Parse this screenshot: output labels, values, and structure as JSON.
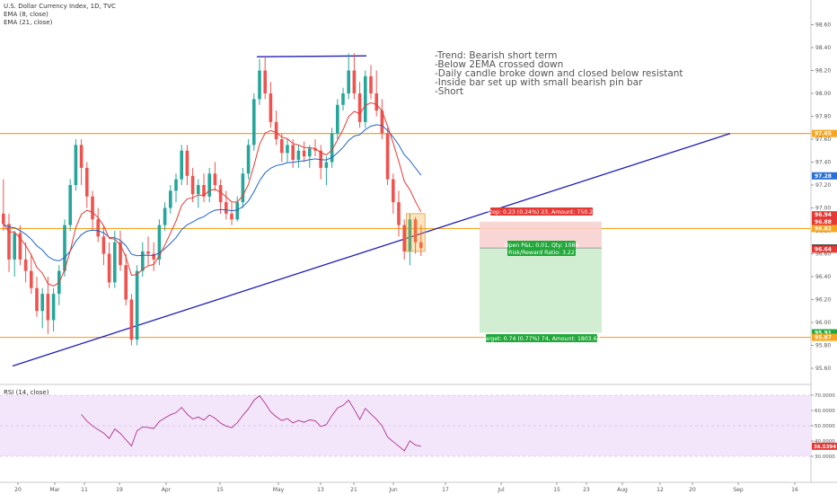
{
  "header": {
    "symbol_line": "U.S. Dollar Currency Index, 1D, TVC",
    "ema8": "EMA (8, close)",
    "ema21": "EMA (21, close)",
    "rsi_label": "RSI (14, close)"
  },
  "notes": [
    "-Trend: Bearish short term",
    "-Below 2EMA crossed down",
    "-Daily candle broke down and closed below resistant",
    "-Inside bar set up with small bearish pin bar",
    "-Short"
  ],
  "position": {
    "stop_text": "Stop: 0.23 (0.24%) 23, Amount: 750.22",
    "open_text": "Open P&L: 0.01, Qty: 1086",
    "rr_text": "Risk/Reward Ratio: 3.22",
    "target_text": "Target: 0.74 (0.77%) 74, Amount: 1803.64"
  },
  "price_axis": {
    "ticks": [
      "98.60",
      "98.40",
      "98.20",
      "98.00",
      "97.80",
      "97.60",
      "97.40",
      "97.20",
      "97.00",
      "96.80",
      "96.60",
      "96.40",
      "96.20",
      "96.00",
      "95.80",
      "95.60"
    ],
    "badges": [
      {
        "text": "97.65",
        "color": "#f5a623"
      },
      {
        "text": "97.28",
        "color": "#2a6fd6"
      },
      {
        "text": "96.94",
        "color": "#e53935"
      },
      {
        "text": "96.88",
        "color": "#e53935"
      },
      {
        "text": "96.82",
        "color": "#f5a623"
      },
      {
        "text": "96.65",
        "color": "#3a3a3a"
      },
      {
        "text": "96.64",
        "color": "#e53935"
      },
      {
        "text": "95.91",
        "color": "#22a83a"
      },
      {
        "text": "95.87",
        "color": "#f5a623"
      }
    ]
  },
  "rsi_axis": {
    "ticks": [
      "70.0000",
      "60.0000",
      "50.0000",
      "40.0000",
      "30.0000"
    ],
    "badge": {
      "text": "36.5394",
      "color": "#e53935"
    }
  },
  "time_axis": [
    "20",
    "Mar",
    "11",
    "19",
    "Apr",
    "15",
    "May",
    "13",
    "21",
    "Jun",
    "17",
    "Jul",
    "15",
    "23",
    "Aug",
    "12",
    "20",
    "Sep",
    "16"
  ],
  "colors": {
    "up": "#26a69a",
    "down": "#ef5350",
    "ema8": "#e53935",
    "ema21": "#1e63c7",
    "level": "#f5a623",
    "trend": "#1f1fb5",
    "rsi_line": "#b0308a",
    "rsi_band": "#f3e6fb"
  },
  "chart_data": {
    "type": "candlestick",
    "title": "U.S. Dollar Currency Index, 1D, TVC",
    "ylim": [
      95.5,
      98.7
    ],
    "horizontal_levels": [
      97.65,
      96.82,
      95.87
    ],
    "trendline": {
      "from": 95.62,
      "to": 97.65
    },
    "top_line_price": 98.32,
    "position": {
      "entry": 96.65,
      "stop": 96.88,
      "target": 95.91
    },
    "candles": [
      [
        96.95,
        97.25,
        96.8,
        96.86
      ],
      [
        96.86,
        96.95,
        96.44,
        96.55
      ],
      [
        96.55,
        96.8,
        96.4,
        96.78
      ],
      [
        96.78,
        96.85,
        96.5,
        96.55
      ],
      [
        96.55,
        96.7,
        96.35,
        96.45
      ],
      [
        96.45,
        96.6,
        96.25,
        96.3
      ],
      [
        96.3,
        96.4,
        96.05,
        96.1
      ],
      [
        96.1,
        96.3,
        95.95,
        96.25
      ],
      [
        96.25,
        96.4,
        95.9,
        96.02
      ],
      [
        96.02,
        96.3,
        95.92,
        96.25
      ],
      [
        96.25,
        96.5,
        96.15,
        96.45
      ],
      [
        96.45,
        96.9,
        96.4,
        96.85
      ],
      [
        96.85,
        97.25,
        96.8,
        97.2
      ],
      [
        97.2,
        97.6,
        97.15,
        97.55
      ],
      [
        97.55,
        97.6,
        97.2,
        97.35
      ],
      [
        97.35,
        97.4,
        97.0,
        97.1
      ],
      [
        97.1,
        97.15,
        96.8,
        96.9
      ],
      [
        96.9,
        97.0,
        96.7,
        96.75
      ],
      [
        96.75,
        96.85,
        96.5,
        96.6
      ],
      [
        96.6,
        96.7,
        96.3,
        96.35
      ],
      [
        96.35,
        96.8,
        96.3,
        96.7
      ],
      [
        96.7,
        96.8,
        96.45,
        96.5
      ],
      [
        96.5,
        96.6,
        96.15,
        96.2
      ],
      [
        96.2,
        96.25,
        95.8,
        95.85
      ],
      [
        95.85,
        96.5,
        95.8,
        96.45
      ],
      [
        96.45,
        96.7,
        96.4,
        96.62
      ],
      [
        96.62,
        96.75,
        96.5,
        96.6
      ],
      [
        96.6,
        96.7,
        96.45,
        96.55
      ],
      [
        96.55,
        96.9,
        96.5,
        96.85
      ],
      [
        96.85,
        97.05,
        96.8,
        97.0
      ],
      [
        97.0,
        97.2,
        96.95,
        97.15
      ],
      [
        97.15,
        97.3,
        97.05,
        97.25
      ],
      [
        97.25,
        97.55,
        97.2,
        97.5
      ],
      [
        97.5,
        97.55,
        97.2,
        97.28
      ],
      [
        97.28,
        97.35,
        97.05,
        97.12
      ],
      [
        97.12,
        97.25,
        97.0,
        97.2
      ],
      [
        97.2,
        97.3,
        97.05,
        97.1
      ],
      [
        97.1,
        97.35,
        97.05,
        97.3
      ],
      [
        97.3,
        97.4,
        97.15,
        97.2
      ],
      [
        97.2,
        97.25,
        96.95,
        97.05
      ],
      [
        97.05,
        97.15,
        96.9,
        96.95
      ],
      [
        96.95,
        97.05,
        96.85,
        96.9
      ],
      [
        96.9,
        97.1,
        96.88,
        97.05
      ],
      [
        97.05,
        97.35,
        97.0,
        97.3
      ],
      [
        97.3,
        97.6,
        97.25,
        97.55
      ],
      [
        97.55,
        98.0,
        97.5,
        97.95
      ],
      [
        97.95,
        98.3,
        97.9,
        98.2
      ],
      [
        98.2,
        98.32,
        97.95,
        98.0
      ],
      [
        98.0,
        98.1,
        97.7,
        97.75
      ],
      [
        97.75,
        97.85,
        97.55,
        97.6
      ],
      [
        97.6,
        97.65,
        97.4,
        97.48
      ],
      [
        97.48,
        97.6,
        97.4,
        97.55
      ],
      [
        97.55,
        97.6,
        97.35,
        97.42
      ],
      [
        97.42,
        97.55,
        97.35,
        97.5
      ],
      [
        97.5,
        97.58,
        97.4,
        97.45
      ],
      [
        97.45,
        97.55,
        97.35,
        97.52
      ],
      [
        97.52,
        97.6,
        97.45,
        97.5
      ],
      [
        97.5,
        97.55,
        97.25,
        97.35
      ],
      [
        97.35,
        97.45,
        97.2,
        97.4
      ],
      [
        97.4,
        97.7,
        97.35,
        97.65
      ],
      [
        97.65,
        97.95,
        97.6,
        97.9
      ],
      [
        97.9,
        98.05,
        97.85,
        98.0
      ],
      [
        98.0,
        98.35,
        97.95,
        98.2
      ],
      [
        98.2,
        98.35,
        97.95,
        98.0
      ],
      [
        98.0,
        98.1,
        97.7,
        97.75
      ],
      [
        97.75,
        98.2,
        97.7,
        98.15
      ],
      [
        98.15,
        98.25,
        97.95,
        98.0
      ],
      [
        98.0,
        98.2,
        97.8,
        97.85
      ],
      [
        97.85,
        97.95,
        97.6,
        97.65
      ],
      [
        97.65,
        97.7,
        97.2,
        97.25
      ],
      [
        97.25,
        97.3,
        96.95,
        97.05
      ],
      [
        97.05,
        97.15,
        96.75,
        96.85
      ],
      [
        96.85,
        96.9,
        96.55,
        96.62
      ],
      [
        96.62,
        96.95,
        96.5,
        96.9
      ],
      [
        96.9,
        96.92,
        96.6,
        96.7
      ],
      [
        96.7,
        96.85,
        96.58,
        96.65
      ]
    ]
  }
}
